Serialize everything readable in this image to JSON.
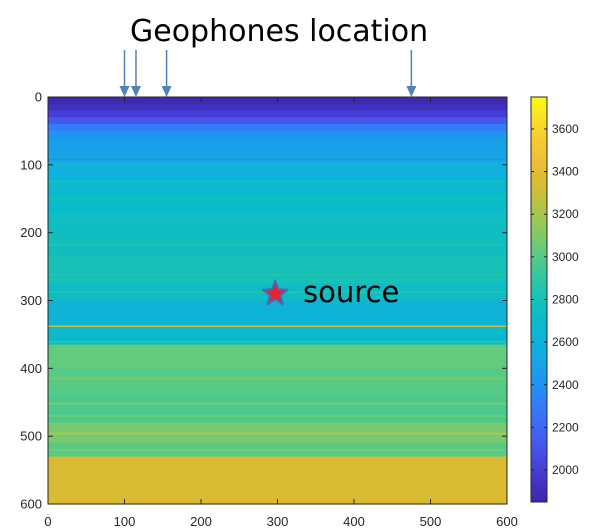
{
  "chart_data": {
    "type": "heatmap",
    "title": "",
    "xlabel": "",
    "ylabel": "",
    "xlim": [
      0,
      600
    ],
    "ylim": [
      0,
      600
    ],
    "y_reversed": true,
    "x_ticks": [
      0,
      100,
      200,
      300,
      400,
      500,
      600
    ],
    "y_ticks": [
      0,
      100,
      200,
      300,
      400,
      500,
      600
    ],
    "grid": false,
    "colormap": "parula",
    "colorbar": {
      "range": [
        1850,
        3750
      ],
      "ticks": [
        2000,
        2200,
        2400,
        2600,
        2800,
        3000,
        3200,
        3400,
        3600
      ]
    },
    "layers": [
      {
        "from": 0,
        "to": 10,
        "value": 1870
      },
      {
        "from": 10,
        "to": 20,
        "value": 1920
      },
      {
        "from": 20,
        "to": 30,
        "value": 2000
      },
      {
        "from": 30,
        "to": 40,
        "value": 2120
      },
      {
        "from": 40,
        "to": 50,
        "value": 2300
      },
      {
        "from": 50,
        "to": 60,
        "value": 2420
      },
      {
        "from": 60,
        "to": 80,
        "value": 2480
      },
      {
        "from": 80,
        "to": 95,
        "value": 2530
      },
      {
        "from": 95,
        "to": 120,
        "value": 2600
      },
      {
        "from": 120,
        "to": 140,
        "value": 2680
      },
      {
        "from": 140,
        "to": 170,
        "value": 2720
      },
      {
        "from": 170,
        "to": 200,
        "value": 2750
      },
      {
        "from": 200,
        "to": 235,
        "value": 2760
      },
      {
        "from": 235,
        "to": 275,
        "value": 2800
      },
      {
        "from": 275,
        "to": 300,
        "value": 2740
      },
      {
        "from": 300,
        "to": 340,
        "value": 2640
      },
      {
        "from": 340,
        "to": 365,
        "value": 2700
      },
      {
        "from": 365,
        "to": 400,
        "value": 3030
      },
      {
        "from": 400,
        "to": 440,
        "value": 3000
      },
      {
        "from": 440,
        "to": 480,
        "value": 2980
      },
      {
        "from": 480,
        "to": 510,
        "value": 3080
      },
      {
        "from": 510,
        "to": 530,
        "value": 3000
      },
      {
        "from": 530,
        "to": 600,
        "value": 3350
      }
    ],
    "thin_lines": [
      {
        "y": 92,
        "value": 2380
      },
      {
        "y": 125,
        "value": 2780
      },
      {
        "y": 150,
        "value": 2780
      },
      {
        "y": 183,
        "value": 2780
      },
      {
        "y": 218,
        "value": 2840
      },
      {
        "y": 244,
        "value": 2820
      },
      {
        "y": 262,
        "value": 2860
      },
      {
        "y": 288,
        "value": 2880
      },
      {
        "y": 308,
        "value": 2560
      },
      {
        "y": 338,
        "value": 3300
      },
      {
        "y": 361,
        "value": 2900
      },
      {
        "y": 415,
        "value": 3080
      },
      {
        "y": 452,
        "value": 3100
      },
      {
        "y": 470,
        "value": 3060
      },
      {
        "y": 496,
        "value": 3300
      },
      {
        "y": 520,
        "value": 3100
      }
    ],
    "geophones_x": [
      100,
      115,
      155,
      475
    ],
    "source": {
      "x": 297,
      "y": 290
    }
  },
  "annotations": {
    "geophones_label": "Geophones location",
    "source_label": "source"
  },
  "colors": {
    "star_fill": "#e8232a",
    "star_stroke": "#4a67b8",
    "arrow": "#4f81bd",
    "axis": "#262626"
  }
}
